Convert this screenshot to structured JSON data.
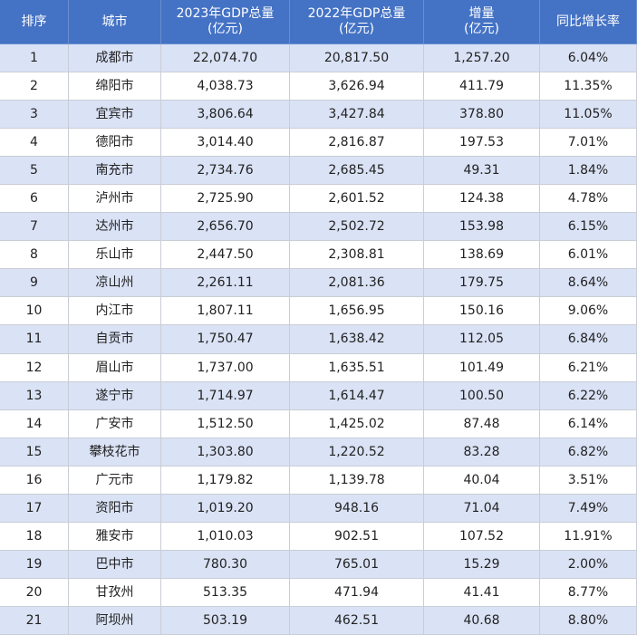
{
  "table": {
    "header": [
      [
        "排序"
      ],
      [
        "城市"
      ],
      [
        "2023年GDP总量",
        "(亿元)"
      ],
      [
        "2022年GDP总量",
        "(亿元)"
      ],
      [
        "增量",
        "(亿元)"
      ],
      [
        "同比增长率"
      ]
    ],
    "rows": [
      [
        "1",
        "成都市",
        "22,074.70",
        "20,817.50",
        "1,257.20",
        "6.04%"
      ],
      [
        "2",
        "绵阳市",
        "4,038.73",
        "3,626.94",
        "411.79",
        "11.35%"
      ],
      [
        "3",
        "宜宾市",
        "3,806.64",
        "3,427.84",
        "378.80",
        "11.05%"
      ],
      [
        "4",
        "德阳市",
        "3,014.40",
        "2,816.87",
        "197.53",
        "7.01%"
      ],
      [
        "5",
        "南充市",
        "2,734.76",
        "2,685.45",
        "49.31",
        "1.84%"
      ],
      [
        "6",
        "泸州市",
        "2,725.90",
        "2,601.52",
        "124.38",
        "4.78%"
      ],
      [
        "7",
        "达州市",
        "2,656.70",
        "2,502.72",
        "153.98",
        "6.15%"
      ],
      [
        "8",
        "乐山市",
        "2,447.50",
        "2,308.81",
        "138.69",
        "6.01%"
      ],
      [
        "9",
        "凉山州",
        "2,261.11",
        "2,081.36",
        "179.75",
        "8.64%"
      ],
      [
        "10",
        "内江市",
        "1,807.11",
        "1,656.95",
        "150.16",
        "9.06%"
      ],
      [
        "11",
        "自贡市",
        "1,750.47",
        "1,638.42",
        "112.05",
        "6.84%"
      ],
      [
        "12",
        "眉山市",
        "1,737.00",
        "1,635.51",
        "101.49",
        "6.21%"
      ],
      [
        "13",
        "遂宁市",
        "1,714.97",
        "1,614.47",
        "100.50",
        "6.22%"
      ],
      [
        "14",
        "广安市",
        "1,512.50",
        "1,425.02",
        "87.48",
        "6.14%"
      ],
      [
        "15",
        "攀枝花市",
        "1,303.80",
        "1,220.52",
        "83.28",
        "6.82%"
      ],
      [
        "16",
        "广元市",
        "1,179.82",
        "1,139.78",
        "40.04",
        "3.51%"
      ],
      [
        "17",
        "资阳市",
        "1,019.20",
        "948.16",
        "71.04",
        "7.49%"
      ],
      [
        "18",
        "雅安市",
        "1,010.03",
        "902.51",
        "107.52",
        "11.91%"
      ],
      [
        "19",
        "巴中市",
        "780.30",
        "765.01",
        "15.29",
        "2.00%"
      ],
      [
        "20",
        "甘孜州",
        "513.35",
        "471.94",
        "41.41",
        "8.77%"
      ],
      [
        "21",
        "阿坝州",
        "503.19",
        "462.51",
        "40.68",
        "8.80%"
      ]
    ]
  }
}
